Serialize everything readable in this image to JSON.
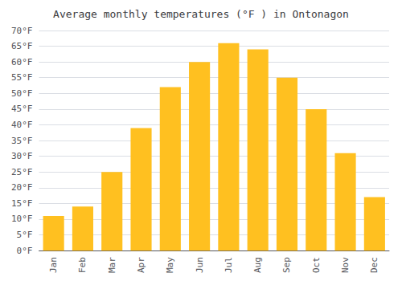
{
  "chart_data": {
    "type": "bar",
    "title": "Average monthly temperatures (°F ) in Ontonagon",
    "categories": [
      "Jan",
      "Feb",
      "Mar",
      "Apr",
      "May",
      "Jun",
      "Jul",
      "Aug",
      "Sep",
      "Oct",
      "Nov",
      "Dec"
    ],
    "values": [
      11,
      14,
      25,
      39,
      52,
      60,
      66,
      64,
      55,
      45,
      31,
      17
    ],
    "color": "#FFC020",
    "ylim": [
      0,
      70
    ],
    "yticks": [
      {
        "value": 0,
        "label": "0°F"
      },
      {
        "value": 5,
        "label": "5°F"
      },
      {
        "value": 10,
        "label": "10°F"
      },
      {
        "value": 15,
        "label": "15°F"
      },
      {
        "value": 20,
        "label": "20°F"
      },
      {
        "value": 25,
        "label": "25°F"
      },
      {
        "value": 30,
        "label": "30°F"
      },
      {
        "value": 35,
        "label": "35°F"
      },
      {
        "value": 40,
        "label": "40°F"
      },
      {
        "value": 45,
        "label": "45°F"
      },
      {
        "value": 50,
        "label": "50°F"
      },
      {
        "value": 55,
        "label": "55°F"
      },
      {
        "value": 60,
        "label": "60°F"
      },
      {
        "value": 65,
        "label": "65°F"
      },
      {
        "value": 70,
        "label": "70°F"
      }
    ],
    "grid": true
  }
}
